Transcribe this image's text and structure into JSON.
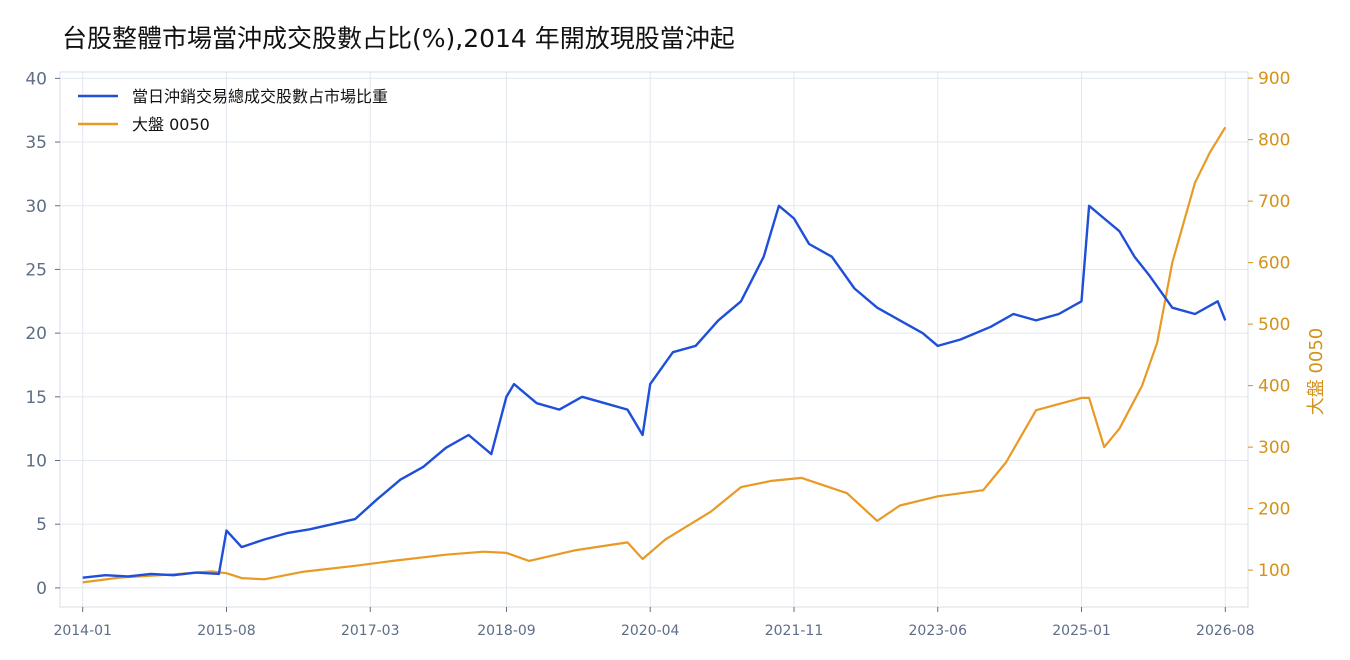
{
  "chart_data": {
    "type": "line",
    "title": "台股整體市場當沖成交股數占比(%),2014 年開放現股當沖起",
    "xlabel": "",
    "ylabel": "",
    "ylabel_right": "大盤 0050",
    "x_range": [
      "2013-10",
      "2026-11"
    ],
    "x_ticks": [
      "2014-01",
      "2015-08",
      "2017-03",
      "2018-09",
      "2020-04",
      "2021-11",
      "2023-06",
      "2025-01",
      "2026-08"
    ],
    "y_left": {
      "range": [
        -1.5,
        40.5
      ],
      "ticks": [
        0,
        5,
        10,
        15,
        20,
        25,
        30,
        35,
        40
      ]
    },
    "y_right": {
      "range": [
        40,
        910
      ],
      "ticks": [
        100,
        200,
        300,
        400,
        500,
        600,
        700,
        800,
        900
      ]
    },
    "grid": true,
    "legend_position": "top-left",
    "colors": {
      "daytrade": "#1f4fd8",
      "index": "#e89a24",
      "grid": "#e3e8ef"
    },
    "series": [
      {
        "name": "當日沖銷交易總成交股數占市場比重",
        "axis": "left",
        "color": "#1f4fd8",
        "x": [
          "2014-01",
          "2014-04",
          "2014-07",
          "2014-10",
          "2015-01",
          "2015-04",
          "2015-07",
          "2015-08",
          "2015-10",
          "2016-01",
          "2016-04",
          "2016-07",
          "2016-10",
          "2017-01",
          "2017-04",
          "2017-07",
          "2017-10",
          "2018-01",
          "2018-04",
          "2018-07",
          "2018-09",
          "2018-10",
          "2019-01",
          "2019-04",
          "2019-07",
          "2019-10",
          "2020-01",
          "2020-03",
          "2020-04",
          "2020-07",
          "2020-10",
          "2021-01",
          "2021-04",
          "2021-07",
          "2021-09",
          "2021-11",
          "2022-01",
          "2022-04",
          "2022-07",
          "2022-10",
          "2023-01",
          "2023-04",
          "2023-06",
          "2023-09",
          "2024-01",
          "2024-04",
          "2024-07",
          "2024-10",
          "2025-01",
          "2025-02",
          "2025-04",
          "2025-06",
          "2025-08",
          "2025-10",
          "2026-01",
          "2026-04",
          "2026-07",
          "2026-08"
        ],
        "values": [
          0.8,
          1.0,
          0.9,
          1.1,
          1.0,
          1.2,
          1.1,
          4.5,
          3.2,
          3.8,
          4.3,
          4.6,
          5.0,
          5.4,
          7.0,
          8.5,
          9.5,
          11.0,
          12.0,
          10.5,
          15.0,
          16.0,
          14.5,
          14.0,
          15.0,
          14.5,
          14.0,
          12.0,
          16.0,
          18.5,
          19.0,
          21.0,
          22.5,
          26.0,
          30.0,
          29.0,
          27.0,
          26.0,
          23.5,
          22.0,
          21.0,
          20.0,
          19.0,
          19.5,
          20.5,
          21.5,
          21.0,
          21.5,
          22.5,
          30.0,
          29.0,
          28.0,
          26.0,
          24.5,
          22.0,
          21.5,
          22.5,
          21.0
        ]
      },
      {
        "name": "大盤 0050",
        "axis": "right",
        "color": "#e89a24",
        "x": [
          "2014-01",
          "2014-06",
          "2015-01",
          "2015-06",
          "2015-08",
          "2015-10",
          "2016-01",
          "2016-06",
          "2017-01",
          "2017-06",
          "2018-01",
          "2018-06",
          "2018-09",
          "2018-12",
          "2019-06",
          "2020-01",
          "2020-03",
          "2020-06",
          "2020-12",
          "2021-04",
          "2021-08",
          "2021-12",
          "2022-06",
          "2022-10",
          "2023-01",
          "2023-06",
          "2023-12",
          "2024-03",
          "2024-07",
          "2024-10",
          "2025-01",
          "2025-02",
          "2025-04",
          "2025-06",
          "2025-09",
          "2025-11",
          "2026-01",
          "2026-04",
          "2026-06",
          "2026-08"
        ],
        "values": [
          80,
          88,
          93,
          98,
          95,
          87,
          85,
          97,
          107,
          115,
          125,
          130,
          128,
          115,
          132,
          145,
          118,
          150,
          195,
          235,
          245,
          250,
          225,
          180,
          205,
          220,
          230,
          275,
          360,
          370,
          380,
          380,
          300,
          330,
          400,
          470,
          600,
          730,
          780,
          820
        ]
      }
    ]
  }
}
